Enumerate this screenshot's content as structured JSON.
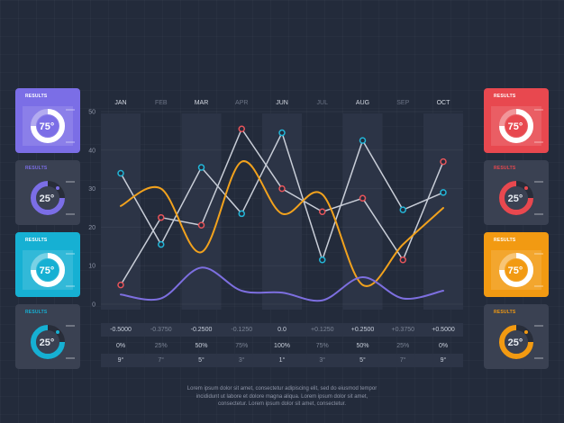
{
  "colors": {
    "background": "#232b3b",
    "column_band": "#2c3446",
    "series_gray": "#c9ced8",
    "series_orange": "#f2a21d",
    "series_purple": "#7d6fe0",
    "point_blue": "#22b6d8",
    "point_red": "#e8545a"
  },
  "chart_data": {
    "type": "line",
    "categories": [
      "JAN",
      "FEB",
      "MAR",
      "APR",
      "JUN",
      "JUL",
      "AUG",
      "SEP",
      "OCT"
    ],
    "ylim": [
      0,
      50
    ],
    "yticks": [
      "0",
      "10",
      "20",
      "30",
      "40",
      "50"
    ],
    "grid": true,
    "series": [
      {
        "values": [
          34,
          15.5,
          35.5,
          23.5,
          44.5,
          11.5,
          42.5,
          24.5,
          29
        ],
        "color": "#c9ced8",
        "style": "straight-with-markers",
        "markers": "blue"
      },
      {
        "values": [
          5,
          22.5,
          20.5,
          45.5,
          30,
          24,
          27.5,
          11.5,
          37
        ],
        "color": "#c9ced8",
        "style": "straight-with-markers",
        "markers": "red"
      },
      {
        "values": [
          25.5,
          30,
          13.5,
          37,
          23.5,
          28.5,
          5,
          15.5,
          25
        ],
        "color": "#f2a21d",
        "style": "smooth"
      },
      {
        "values": [
          2.5,
          1.5,
          9.5,
          3.5,
          3,
          1,
          7,
          1.5,
          3.5
        ],
        "color": "#7d6fe0",
        "style": "smooth"
      }
    ]
  },
  "table": {
    "row1": [
      "-0.5000",
      "-0.3750",
      "-0.2500",
      "-0.1250",
      "0.0",
      "+0.1250",
      "+0.2500",
      "+0.3750",
      "+0.5000"
    ],
    "row2": [
      "0%",
      "25%",
      "50%",
      "75%",
      "100%",
      "75%",
      "50%",
      "25%",
      "0%"
    ],
    "row3": [
      "9°",
      "7°",
      "5°",
      "3°",
      "1°",
      "3°",
      "5°",
      "7°",
      "9°"
    ]
  },
  "cards": {
    "left": [
      {
        "title": "RESULTS",
        "value": "75°",
        "color": "#7b6ee6",
        "style": "filled",
        "percent": 0.75
      },
      {
        "title": "RESULTS",
        "value": "25°",
        "color": "#7b6ee6",
        "style": "outline",
        "percent": 0.25
      },
      {
        "title": "RESULTS",
        "value": "75°",
        "color": "#16b0d3",
        "style": "filled",
        "percent": 0.75
      },
      {
        "title": "RESULTS",
        "value": "25°",
        "color": "#16b0d3",
        "style": "outline",
        "percent": 0.25
      }
    ],
    "right": [
      {
        "title": "RESULTS",
        "value": "75°",
        "color": "#e8484f",
        "style": "filled",
        "percent": 0.75
      },
      {
        "title": "RESULTS",
        "value": "25°",
        "color": "#e8484f",
        "style": "outline",
        "percent": 0.25
      },
      {
        "title": "RESULTS",
        "value": "75°",
        "color": "#f29a12",
        "style": "filled",
        "percent": 0.75
      },
      {
        "title": "RESULTS",
        "value": "25°",
        "color": "#f29a12",
        "style": "outline",
        "percent": 0.25
      }
    ]
  },
  "footer": {
    "line1": "Lorem ipsum dolor sit amet, consectetur adipiscing elit, sed do eiusmod tempor",
    "line2": "incididunt ut labore et dolore magna aliqua. Lorem ipsum dolor sit amet,",
    "line3": "consectetur. Lorem ipsum dolor sit amet, consectetur."
  }
}
